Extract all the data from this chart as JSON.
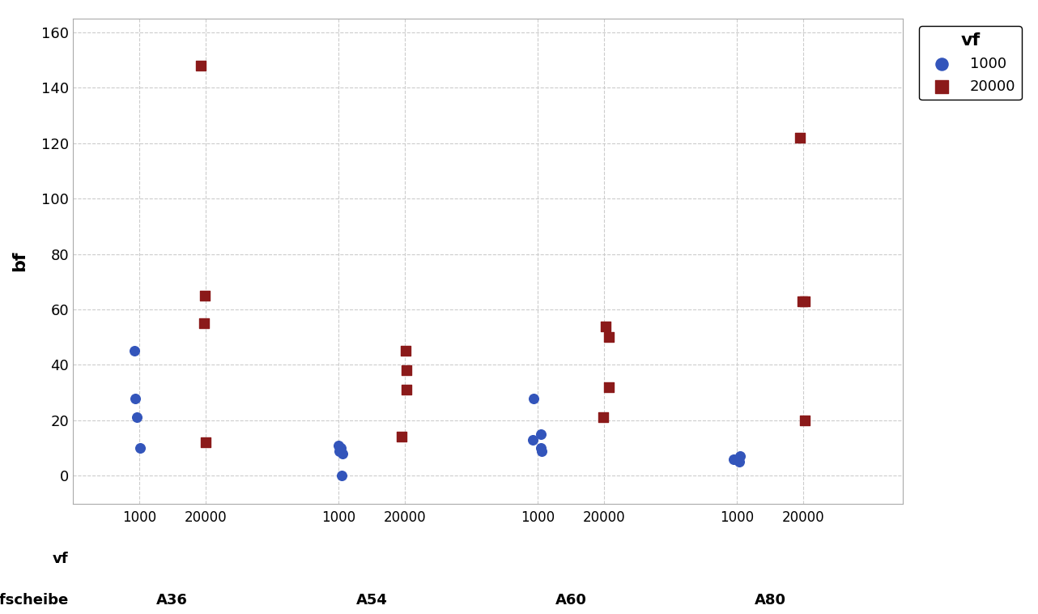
{
  "title": "",
  "ylabel": "bf",
  "ylim": [
    -10,
    165
  ],
  "yticks": [
    0,
    20,
    40,
    60,
    80,
    100,
    120,
    140,
    160
  ],
  "background_color": "#ffffff",
  "grid_color": "#cccccc",
  "legend_title": "vf",
  "series": [
    {
      "label": "1000",
      "color": "#3355bb",
      "marker": "o",
      "points": {
        "A36_1000": [
          10,
          21,
          28,
          45
        ],
        "A54_1000": [
          0,
          8,
          9,
          10,
          11
        ],
        "A60_1000": [
          9,
          10,
          13,
          15,
          28
        ],
        "A80_1000": [
          5,
          6,
          7
        ]
      }
    },
    {
      "label": "20000",
      "color": "#8b1a1a",
      "marker": "s",
      "points": {
        "A36_20000": [
          12,
          55,
          65,
          148
        ],
        "A54_20000": [
          14,
          31,
          38,
          45
        ],
        "A60_20000": [
          21,
          32,
          50,
          54
        ],
        "A80_20000": [
          20,
          63,
          63,
          122
        ]
      }
    }
  ],
  "x_positions": {
    "A36_1000": 1.0,
    "A36_20000": 2.0,
    "A54_1000": 4.0,
    "A54_20000": 5.0,
    "A60_1000": 7.0,
    "A60_20000": 8.0,
    "A80_1000": 10.0,
    "A80_20000": 11.0
  },
  "vf_ticks": [
    1.0,
    2.0,
    4.0,
    5.0,
    7.0,
    8.0,
    10.0,
    11.0
  ],
  "vf_labels": [
    "1000",
    "20000",
    "1000",
    "20000",
    "1000",
    "20000",
    "1000",
    "20000"
  ],
  "group_centers": [
    1.5,
    4.5,
    7.5,
    10.5
  ],
  "group_labels": [
    "A36",
    "A54",
    "A60",
    "A80"
  ],
  "xlim": [
    0.0,
    12.5
  ]
}
